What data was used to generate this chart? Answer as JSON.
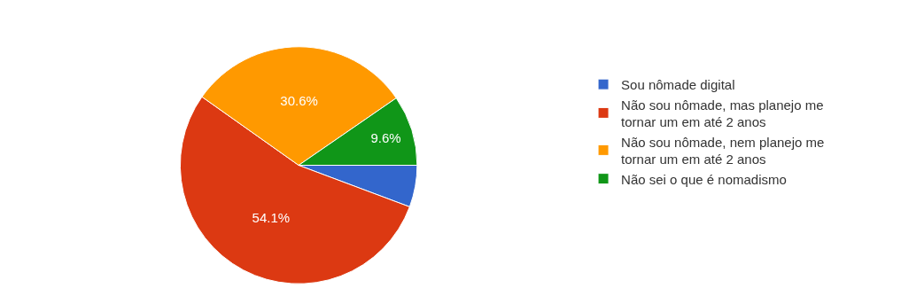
{
  "chart_data": {
    "type": "pie",
    "categories": [
      "Sou nômade digital",
      "Não sou nômade, mas planejo me tornar um em até 2 anos",
      "Não sou nômade, nem planejo me tornar um em até 2 anos",
      "Não sei o que é nomadismo"
    ],
    "values": [
      5.7,
      54.1,
      30.6,
      9.6
    ],
    "colors": [
      "#3366cc",
      "#dc3912",
      "#ff9900",
      "#109618"
    ],
    "value_labels": [
      null,
      "54.1%",
      "30.6%",
      "9.6%"
    ],
    "legend": "right"
  }
}
